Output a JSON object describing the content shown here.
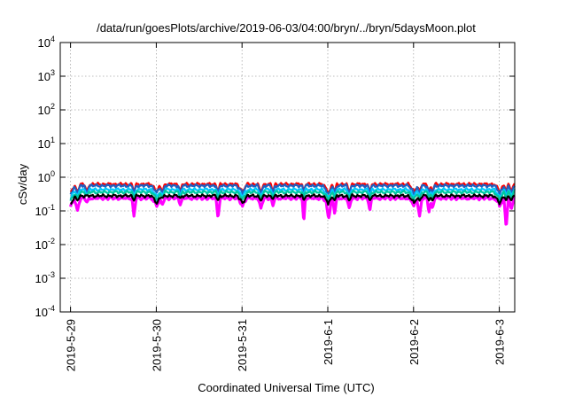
{
  "chart_data": {
    "type": "line",
    "title": "/data/run/goesPlots/archive/2019-06-03/04:00/bryn/../bryn/5daysMoon.plot",
    "xlabel": "Coordinated Universal Time (UTC)",
    "ylabel": "cSv/day",
    "yscale": "log",
    "ylim": [
      0.0001,
      10000
    ],
    "xlim": [
      -0.12,
      5.18
    ],
    "x_units": "days since 2019-5-29 00:00 UTC",
    "grid": true,
    "x_ticks": [
      {
        "value": 0,
        "label": "2019-5-29"
      },
      {
        "value": 1,
        "label": "2019-5-30"
      },
      {
        "value": 2,
        "label": "2019-5-31"
      },
      {
        "value": 3,
        "label": "2019-6-1"
      },
      {
        "value": 4,
        "label": "2019-6-2"
      },
      {
        "value": 5,
        "label": "2019-6-3"
      }
    ],
    "y_ticks": [
      {
        "value": 0.0001,
        "base": "10",
        "exp": "-4"
      },
      {
        "value": 0.001,
        "base": "10",
        "exp": "-3"
      },
      {
        "value": 0.01,
        "base": "10",
        "exp": "-2"
      },
      {
        "value": 0.1,
        "base": "10",
        "exp": "-1"
      },
      {
        "value": 1,
        "base": "10",
        "exp": "0"
      },
      {
        "value": 10,
        "base": "10",
        "exp": "1"
      },
      {
        "value": 100,
        "base": "10",
        "exp": "2"
      },
      {
        "value": 1000,
        "base": "10",
        "exp": "3"
      },
      {
        "value": 10000,
        "base": "10",
        "exp": "4"
      }
    ],
    "series": [
      {
        "color": "#ff00ff",
        "base": 0.24,
        "dip_depth": 0.45
      },
      {
        "color": "#ff0000",
        "base": 0.62,
        "dip_depth": 0.4
      },
      {
        "color": "#2060c0",
        "base": 0.56,
        "dip_depth": 0.4
      },
      {
        "color": "#00c8ff",
        "base": 0.43,
        "dip_depth": 0.35
      },
      {
        "color": "#00c8a0",
        "base": 0.36,
        "dip_depth": 0.32
      },
      {
        "color": "#000000",
        "base": 0.28,
        "dip_depth": 0.28
      }
    ],
    "dips": [
      {
        "x": 0.08,
        "y": 0.1,
        "w": 0.035
      },
      {
        "x": 0.19,
        "y": 0.18,
        "w": 0.03
      },
      {
        "x": 0.74,
        "y": 0.07,
        "w": 0.025
      },
      {
        "x": 1.07,
        "y": 0.15,
        "w": 0.03
      },
      {
        "x": 1.28,
        "y": 0.15,
        "w": 0.025
      },
      {
        "x": 1.72,
        "y": 0.06,
        "w": 0.025
      },
      {
        "x": 2.22,
        "y": 0.12,
        "w": 0.035
      },
      {
        "x": 2.36,
        "y": 0.14,
        "w": 0.025
      },
      {
        "x": 2.72,
        "y": 0.045,
        "w": 0.02
      },
      {
        "x": 3.01,
        "y": 0.06,
        "w": 0.03
      },
      {
        "x": 3.08,
        "y": 0.08,
        "w": 0.025
      },
      {
        "x": 3.25,
        "y": 0.12,
        "w": 0.03
      },
      {
        "x": 3.49,
        "y": 0.1,
        "w": 0.025
      },
      {
        "x": 4.07,
        "y": 0.07,
        "w": 0.03
      },
      {
        "x": 4.18,
        "y": 0.09,
        "w": 0.025
      },
      {
        "x": 4.22,
        "y": 0.12,
        "w": 0.03
      },
      {
        "x": 5.08,
        "y": 0.03,
        "w": 0.025
      },
      {
        "x": 5.14,
        "y": 0.11,
        "w": 0.03
      }
    ]
  }
}
